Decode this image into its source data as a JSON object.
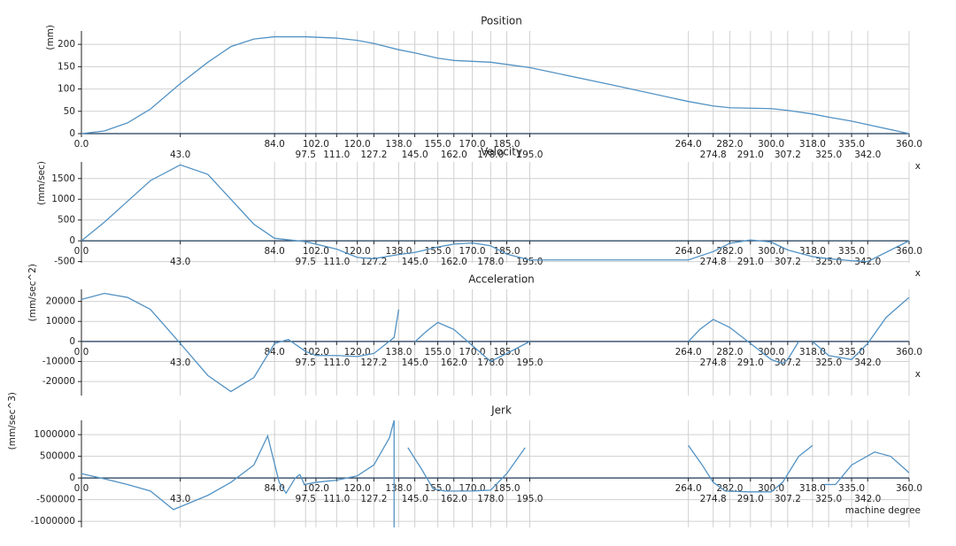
{
  "chart_data": [
    {
      "type": "line",
      "title": "Position",
      "y_label": "(mm)",
      "x_label": "x",
      "color": "#5292c4",
      "grid": true,
      "x": [
        0,
        10,
        20,
        30,
        43,
        55,
        65,
        75,
        84,
        97.5,
        111,
        120,
        127.2,
        138,
        145,
        155,
        162,
        170,
        178,
        185,
        195,
        230,
        264,
        274.8,
        282,
        291,
        300,
        307.2,
        318,
        325,
        335,
        342,
        360
      ],
      "values": [
        0,
        6,
        24,
        55,
        112,
        160,
        195,
        212,
        217,
        217,
        214,
        209,
        202,
        188,
        181,
        169,
        164,
        162,
        160,
        155,
        148,
        110,
        72,
        62,
        58,
        57,
        56,
        52,
        44,
        37,
        28,
        20,
        0
      ],
      "xlim": [
        0,
        360
      ],
      "ylim": [
        0,
        230
      ],
      "yticks": [
        0,
        50,
        100,
        150,
        200
      ],
      "xticks": [
        {
          "value": 0,
          "label": "0.0"
        },
        {
          "value": 43,
          "label": "43.0"
        },
        {
          "value": 84,
          "label": "84.0"
        },
        {
          "value": 97.5,
          "label": "97.5"
        },
        {
          "value": 102,
          "label": "102.0"
        },
        {
          "value": 111,
          "label": "111.0"
        },
        {
          "value": 120,
          "label": "120.0"
        },
        {
          "value": 127.2,
          "label": "127.2"
        },
        {
          "value": 138,
          "label": "138.0"
        },
        {
          "value": 145,
          "label": "145.0"
        },
        {
          "value": 155,
          "label": "155.0"
        },
        {
          "value": 162,
          "label": "162.0"
        },
        {
          "value": 170,
          "label": "170.0"
        },
        {
          "value": 178,
          "label": "178.0"
        },
        {
          "value": 185,
          "label": "185.0"
        },
        {
          "value": 195,
          "label": "195.0"
        },
        {
          "value": 264,
          "label": "264.0"
        },
        {
          "value": 274.8,
          "label": "274.8"
        },
        {
          "value": 282,
          "label": "282.0"
        },
        {
          "value": 291,
          "label": "291.0"
        },
        {
          "value": 300,
          "label": "300.0"
        },
        {
          "value": 307.2,
          "label": "307.2"
        },
        {
          "value": 318,
          "label": "318.0"
        },
        {
          "value": 325,
          "label": "325.0"
        },
        {
          "value": 335,
          "label": "335.0"
        },
        {
          "value": 342,
          "label": "342.0"
        },
        {
          "value": 360,
          "label": "360.0"
        }
      ]
    },
    {
      "type": "line",
      "title": "Velocity",
      "y_label": "(mm/sec)",
      "x_label": "x",
      "color": "#5292c4",
      "grid": true,
      "x": [
        0,
        10,
        20,
        30,
        43,
        55,
        65,
        75,
        84,
        97.5,
        111,
        120,
        127.2,
        138,
        145,
        155,
        162,
        170,
        178,
        185,
        195,
        230,
        264,
        274.8,
        282,
        291,
        300,
        307.2,
        318,
        325,
        335,
        342,
        360
      ],
      "values": [
        0,
        450,
        950,
        1450,
        1830,
        1600,
        1000,
        400,
        60,
        -20,
        -200,
        -400,
        -430,
        -330,
        -280,
        -150,
        -80,
        -50,
        -120,
        -320,
        -460,
        -460,
        -460,
        -260,
        -60,
        20,
        -30,
        -220,
        -380,
        -430,
        -480,
        -500,
        0
      ],
      "xlim": [
        0,
        360
      ],
      "ylim": [
        -530,
        1900
      ],
      "yticks": [
        -500,
        0,
        500,
        1000,
        1500
      ],
      "xticks": [
        {
          "value": 0,
          "label": "0.0"
        },
        {
          "value": 43,
          "label": "43.0"
        },
        {
          "value": 84,
          "label": "84.0"
        },
        {
          "value": 97.5,
          "label": "97.5"
        },
        {
          "value": 102,
          "label": "102.0"
        },
        {
          "value": 111,
          "label": "111.0"
        },
        {
          "value": 120,
          "label": "120.0"
        },
        {
          "value": 127.2,
          "label": "127.2"
        },
        {
          "value": 138,
          "label": "138.0"
        },
        {
          "value": 145,
          "label": "145.0"
        },
        {
          "value": 155,
          "label": "155.0"
        },
        {
          "value": 162,
          "label": "162.0"
        },
        {
          "value": 170,
          "label": "170.0"
        },
        {
          "value": 178,
          "label": "178.0"
        },
        {
          "value": 185,
          "label": "185.0"
        },
        {
          "value": 195,
          "label": "195.0"
        },
        {
          "value": 264,
          "label": "264.0"
        },
        {
          "value": 274.8,
          "label": "274.8"
        },
        {
          "value": 282,
          "label": "282.0"
        },
        {
          "value": 291,
          "label": "291.0"
        },
        {
          "value": 300,
          "label": "300.0"
        },
        {
          "value": 307.2,
          "label": "307.2"
        },
        {
          "value": 318,
          "label": "318.0"
        },
        {
          "value": 325,
          "label": "325.0"
        },
        {
          "value": 335,
          "label": "335.0"
        },
        {
          "value": 342,
          "label": "342.0"
        },
        {
          "value": 360,
          "label": "360.0"
        }
      ]
    },
    {
      "type": "line",
      "title": "Acceleration",
      "y_label": "(mm/sec^2)",
      "x_label": "x",
      "color": "#5292c4",
      "grid": true,
      "x": [
        0,
        10,
        20,
        30,
        43,
        55,
        65,
        75,
        84,
        90,
        97.5,
        102,
        111,
        120,
        127.2,
        136,
        138,
        140,
        145,
        150,
        155,
        162,
        170,
        178,
        185,
        195,
        230,
        264,
        269,
        274.8,
        282,
        291,
        300,
        305,
        307.2,
        312,
        315,
        318,
        325,
        335,
        342,
        350,
        360
      ],
      "values": [
        21000,
        24000,
        22000,
        16000,
        -1000,
        -17000,
        -25000,
        -18000,
        -1000,
        1000,
        -5000,
        -7000,
        -7000,
        -7500,
        -6000,
        2000,
        16000,
        null,
        -200,
        5000,
        9500,
        6000,
        -2000,
        -10000,
        -6000,
        0,
        null,
        0,
        6000,
        11000,
        7000,
        -1000,
        -9000,
        -11000,
        -9000,
        0,
        null,
        0,
        -7000,
        -9000,
        -1000,
        12000,
        22000
      ],
      "xlim": [
        0,
        360
      ],
      "ylim": [
        -27000,
        26000
      ],
      "yticks": [
        -20000,
        -10000,
        0,
        10000,
        20000
      ],
      "xticks": [
        {
          "value": 0,
          "label": "0.0"
        },
        {
          "value": 43,
          "label": "43.0"
        },
        {
          "value": 84,
          "label": "84.0"
        },
        {
          "value": 97.5,
          "label": "97.5"
        },
        {
          "value": 102,
          "label": "102.0"
        },
        {
          "value": 111,
          "label": "111.0"
        },
        {
          "value": 120,
          "label": "120.0"
        },
        {
          "value": 127.2,
          "label": "127.2"
        },
        {
          "value": 138,
          "label": "138.0"
        },
        {
          "value": 145,
          "label": "145.0"
        },
        {
          "value": 155,
          "label": "155.0"
        },
        {
          "value": 162,
          "label": "162.0"
        },
        {
          "value": 170,
          "label": "170.0"
        },
        {
          "value": 178,
          "label": "178.0"
        },
        {
          "value": 185,
          "label": "185.0"
        },
        {
          "value": 195,
          "label": "195.0"
        },
        {
          "value": 264,
          "label": "264.0"
        },
        {
          "value": 274.8,
          "label": "274.8"
        },
        {
          "value": 282,
          "label": "282.0"
        },
        {
          "value": 291,
          "label": "291.0"
        },
        {
          "value": 300,
          "label": "300.0"
        },
        {
          "value": 307.2,
          "label": "307.2"
        },
        {
          "value": 318,
          "label": "318.0"
        },
        {
          "value": 325,
          "label": "325.0"
        },
        {
          "value": 335,
          "label": "335.0"
        },
        {
          "value": 342,
          "label": "342.0"
        },
        {
          "value": 360,
          "label": "360.0"
        }
      ]
    },
    {
      "type": "line",
      "title": "Jerk",
      "y_label": "(mm/sec^3)",
      "x_label": "machine degree",
      "color": "#5292c4",
      "grid": true,
      "x": [
        0,
        10,
        20,
        30,
        40,
        55,
        65,
        75,
        81,
        86,
        89,
        93,
        95,
        97,
        102,
        111,
        120,
        127.2,
        134,
        136,
        136,
        138,
        142,
        148,
        153,
        158,
        165,
        170,
        178,
        185,
        193,
        230,
        264,
        270,
        274.8,
        280,
        290,
        300,
        305,
        312,
        318,
        320,
        323,
        328,
        335,
        345,
        352,
        360
      ],
      "values": [
        100000,
        -20000,
        -150000,
        -300000,
        -730000,
        -400000,
        -100000,
        300000,
        970000,
        -100000,
        -350000,
        0,
        80000,
        -150000,
        -100000,
        -50000,
        50000,
        300000,
        930000,
        1330000,
        -1140000,
        null,
        700000,
        200000,
        -250000,
        -300000,
        -300000,
        -300000,
        -280000,
        100000,
        700000,
        null,
        750000,
        300000,
        -100000,
        -300000,
        -320000,
        -320000,
        -100000,
        500000,
        750000,
        null,
        -150000,
        -150000,
        300000,
        600000,
        500000,
        120000
      ],
      "xlim": [
        0,
        360
      ],
      "ylim": [
        -1140000,
        1330000
      ],
      "yticks": [
        -1000000,
        -500000,
        0,
        500000,
        1000000
      ],
      "xticks": [
        {
          "value": 0,
          "label": "0.0"
        },
        {
          "value": 43,
          "label": "43.0"
        },
        {
          "value": 84,
          "label": "84.0"
        },
        {
          "value": 97.5,
          "label": "97.5"
        },
        {
          "value": 102,
          "label": "102.0"
        },
        {
          "value": 111,
          "label": "111.0"
        },
        {
          "value": 120,
          "label": "120.0"
        },
        {
          "value": 127.2,
          "label": "127.2"
        },
        {
          "value": 138,
          "label": "138.0"
        },
        {
          "value": 145,
          "label": "145.0"
        },
        {
          "value": 155,
          "label": "155.0"
        },
        {
          "value": 162,
          "label": "162.0"
        },
        {
          "value": 170,
          "label": "170.0"
        },
        {
          "value": 178,
          "label": "178.0"
        },
        {
          "value": 185,
          "label": "185.0"
        },
        {
          "value": 195,
          "label": "195.0"
        },
        {
          "value": 264,
          "label": "264.0"
        },
        {
          "value": 274.8,
          "label": "274.8"
        },
        {
          "value": 282,
          "label": "282.0"
        },
        {
          "value": 291,
          "label": "291.0"
        },
        {
          "value": 300,
          "label": "300.0"
        },
        {
          "value": 307.2,
          "label": "307.2"
        },
        {
          "value": 318,
          "label": "318.0"
        },
        {
          "value": 325,
          "label": "325.0"
        },
        {
          "value": 335,
          "label": "335.0"
        },
        {
          "value": 342,
          "label": "342.0"
        },
        {
          "value": 360,
          "label": "360.0"
        }
      ]
    }
  ]
}
